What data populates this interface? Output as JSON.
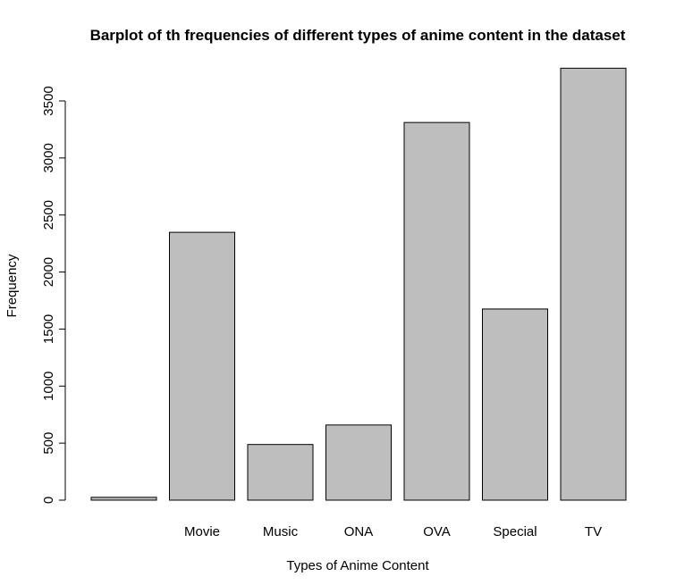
{
  "chart_data": {
    "type": "bar",
    "title": "Barplot of th frequencies of different types of anime content in the dataset",
    "xlabel": "Types of Anime Content",
    "ylabel": "Frequency",
    "categories": [
      "",
      "Movie",
      "Music",
      "ONA",
      "OVA",
      "Special",
      "TV"
    ],
    "values": [
      25,
      2348,
      488,
      659,
      3311,
      1676,
      3787
    ],
    "ylim": [
      0,
      3800
    ],
    "yticks": [
      0,
      500,
      1000,
      1500,
      2000,
      2500,
      3000,
      3500
    ],
    "colors": {
      "bar_fill": "#bebebe",
      "bar_stroke": "#000000"
    },
    "grid": false,
    "legend": "none"
  }
}
